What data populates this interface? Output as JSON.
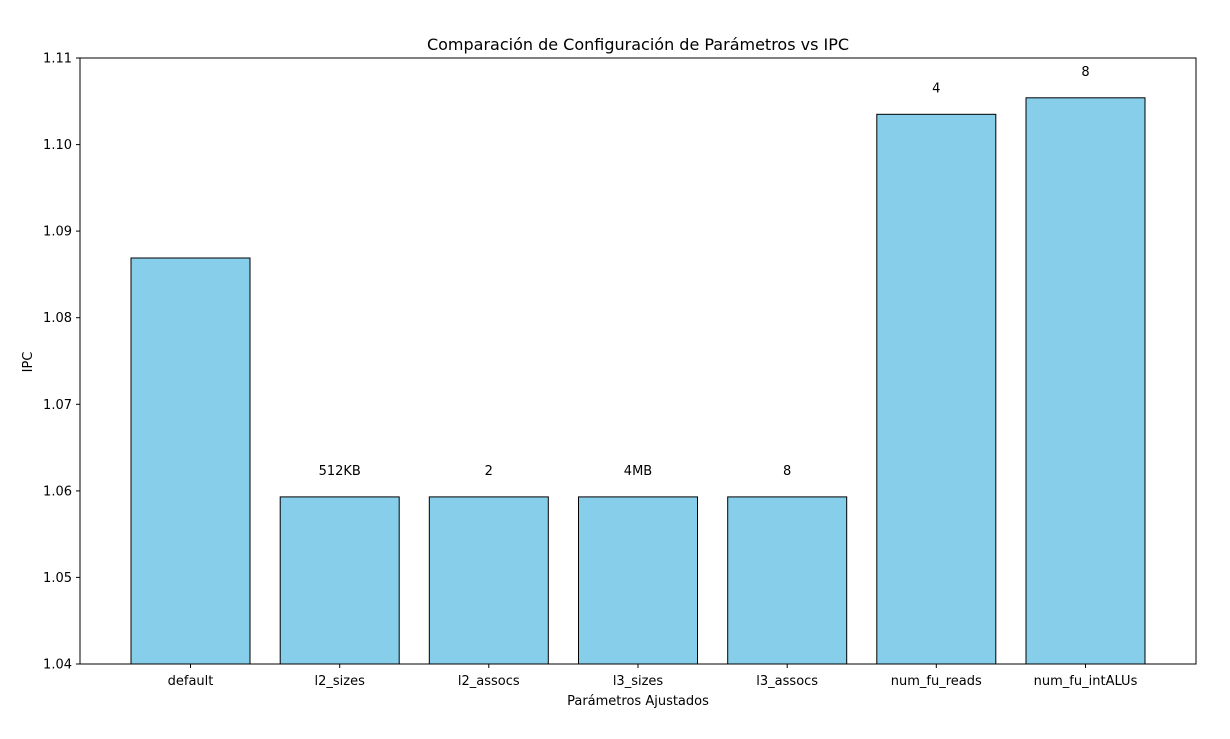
{
  "chart_data": {
    "type": "bar",
    "title": "Comparación de Configuración de Parámetros vs IPC",
    "xlabel": "Parámetros Ajustados",
    "ylabel": "IPC",
    "ylim": [
      1.04,
      1.11
    ],
    "yticks": [
      "1.04",
      "1.05",
      "1.06",
      "1.07",
      "1.08",
      "1.09",
      "1.10",
      "1.11"
    ],
    "categories": [
      "default",
      "l2_sizes",
      "l2_assocs",
      "l3_sizes",
      "l3_assocs",
      "num_fu_reads",
      "num_fu_intALUs"
    ],
    "values": [
      1.0869,
      1.0593,
      1.0593,
      1.0593,
      1.0593,
      1.1035,
      1.1054
    ],
    "bar_labels": [
      "",
      "512KB",
      "2",
      "4MB",
      "8",
      "4",
      "8"
    ],
    "grid": false,
    "legend": "none"
  },
  "colors": {
    "bar_fill": "#87CEEB",
    "bar_edge": "#000000",
    "axes": "#000000",
    "background": "#ffffff"
  }
}
